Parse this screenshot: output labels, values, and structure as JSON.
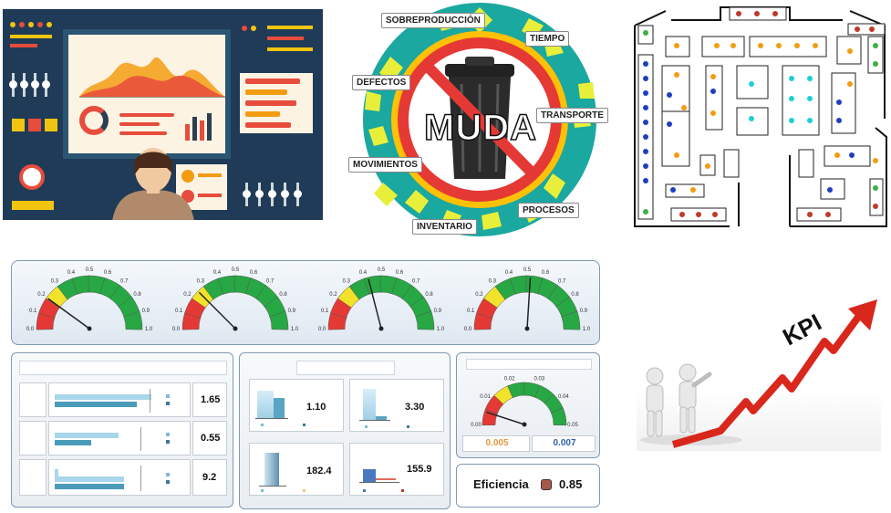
{
  "muda": {
    "center_text": "MUDA",
    "labels": {
      "sobreproduccion": "SOBREPRODUCCIÓN",
      "tiempo": "TIEMPO",
      "defectos": "DEFECTOS",
      "transporte": "TRANSPORTE",
      "movimientos": "MOVIMIENTOS",
      "procesos": "PROCESOS",
      "inventario": "INVENTARIO"
    }
  },
  "gauges_top": {
    "tick_labels": [
      "0.0",
      "0.1",
      "0.2",
      "0.3",
      "0.4",
      "0.5",
      "0.6",
      "0.7",
      "0.8",
      "0.9",
      "1.0"
    ],
    "needle_values": [
      0.2,
      0.25,
      0.42,
      0.52
    ]
  },
  "bar_panel": {
    "rows": [
      {
        "value": "1.65",
        "bar_a": 0.7,
        "bar_b": 0.95
      },
      {
        "value": "0.55",
        "bar_a": 0.35,
        "bar_b": 0.62
      },
      {
        "value": "9.2",
        "bar_a": 0.55,
        "bar_b": 0.85
      }
    ]
  },
  "mini_charts": [
    {
      "value": "1.10"
    },
    {
      "value": "3.30"
    },
    {
      "value": "182.4"
    },
    {
      "value": "155.9"
    }
  ],
  "small_gauge": {
    "tick_labels": [
      "0.00",
      "0.01",
      "0.02",
      "0.03",
      "0.04",
      "0.05"
    ],
    "value_left": "0.005",
    "value_right": "0.007",
    "needle_value": 0.005
  },
  "efficiency": {
    "label": "Eficiencia",
    "value": "0.85"
  },
  "kpi": {
    "text": "KPI"
  },
  "colors": {
    "red": "#e53935",
    "yellow": "#f2e22b",
    "green": "#27a844",
    "navy": "#1f3b57",
    "muda_teal": "#1aa8a0"
  }
}
